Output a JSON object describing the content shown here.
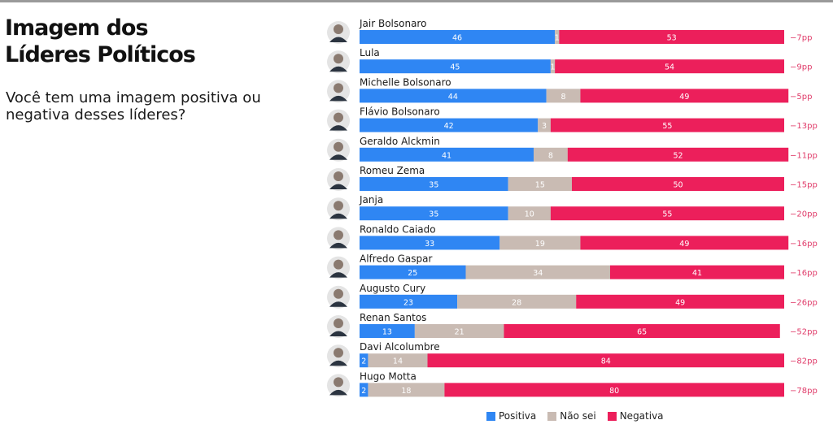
{
  "header": {
    "title_line1": "Imagem dos",
    "title_line2": "Líderes Políticos",
    "subtitle": "Você tem uma imagem positiva ou negativa desses líderes?"
  },
  "colors": {
    "positiva": "#2f86f3",
    "nao_sei": "#c9bbb3",
    "negativa": "#ec1f5b",
    "diff_text": "#e03c6a",
    "name_text": "#1a1a1a"
  },
  "legend": {
    "positiva": "Positiva",
    "nao_sei": "Não sei",
    "negativa": "Negativa"
  },
  "chart_data": {
    "type": "bar",
    "stacked": true,
    "orientation": "horizontal",
    "xlim": [
      0,
      100
    ],
    "categories": [
      "Jair Bolsonaro",
      "Lula",
      "Michelle Bolsonaro",
      "Flávio Bolsonaro",
      "Geraldo Alckmin",
      "Romeu Zema",
      "Janja",
      "Ronaldo Caiado",
      "Alfredo Gaspar",
      "Augusto Cury",
      "Renan Santos",
      "Davi Alcolumbre",
      "Hugo Motta"
    ],
    "series": [
      {
        "name": "Positiva",
        "values": [
          46,
          45,
          44,
          42,
          41,
          35,
          35,
          33,
          25,
          23,
          13,
          2,
          2
        ]
      },
      {
        "name": "Não sei",
        "values": [
          1,
          1,
          8,
          3,
          8,
          15,
          10,
          19,
          34,
          28,
          21,
          14,
          18
        ]
      },
      {
        "name": "Negativa",
        "values": [
          53,
          54,
          49,
          55,
          52,
          50,
          55,
          49,
          41,
          49,
          65,
          84,
          80
        ]
      }
    ],
    "differences": [
      "−7pp",
      "−9pp",
      "−5pp",
      "−13pp",
      "−11pp",
      "−15pp",
      "−20pp",
      "−16pp",
      "−16pp",
      "−26pp",
      "−52pp",
      "−82pp",
      "−78pp"
    ],
    "legend_position": "bottom"
  }
}
